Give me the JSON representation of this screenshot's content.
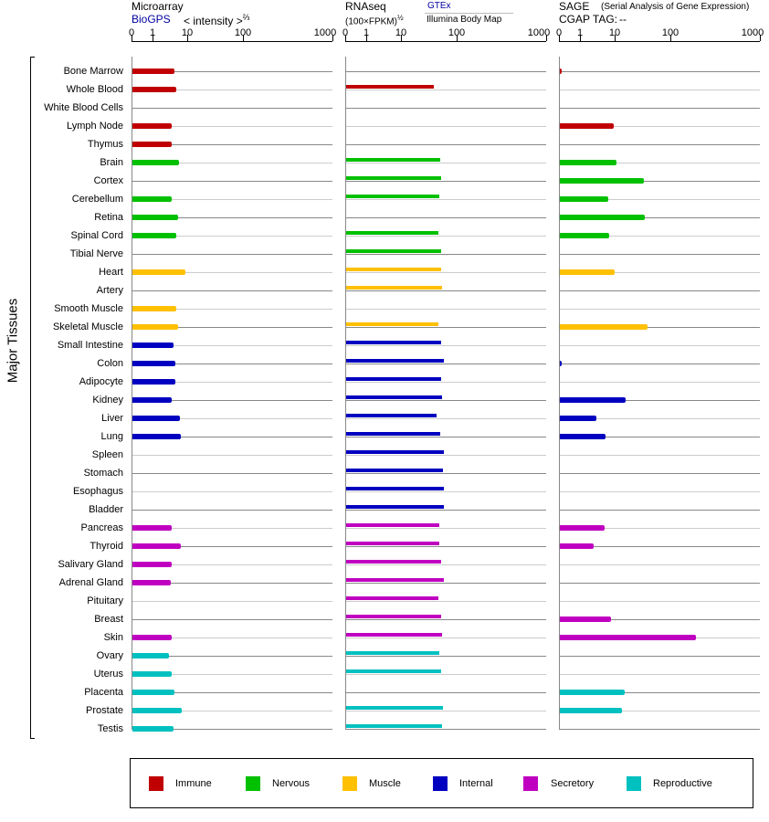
{
  "header": {
    "microarray": {
      "title": "Microarray",
      "source": "BioGPS",
      "unit": "< intensity >",
      "unit_exp": "⅔"
    },
    "rnaseq": {
      "title": "RNAseq",
      "unit": "(100×FPKM)",
      "unit_exp": "½",
      "source_primary": "GTEx",
      "source_secondary": "Illumina Body Map"
    },
    "sage": {
      "title": "SAGE",
      "subtitle": "(Serial Analysis of Gene Expression)",
      "tag_label": "CGAP TAG:",
      "tag_value": "--"
    }
  },
  "axis_ticks": [
    "0",
    "1",
    "10",
    "100",
    "1000"
  ],
  "y_label": "Major Tissues",
  "groups": {
    "immune": {
      "label": "Immune",
      "color": "#c00000"
    },
    "nervous": {
      "label": "Nervous",
      "color": "#00c000"
    },
    "muscle": {
      "label": "Muscle",
      "color": "#ffc000"
    },
    "internal": {
      "label": "Internal",
      "color": "#0000c0"
    },
    "secretory": {
      "label": "Secretory",
      "color": "#c000c0"
    },
    "reproductive": {
      "label": "Reproductive",
      "color": "#00c0c0"
    }
  },
  "legend_order": [
    "immune",
    "nervous",
    "muscle",
    "internal",
    "secretory",
    "reproductive"
  ],
  "chart_data": {
    "type": "bar",
    "orientation": "horizontal",
    "scale_ticks": [
      0,
      1,
      10,
      100,
      1000
    ],
    "series_names": [
      "Microarray",
      "RNAseq",
      "SAGE"
    ],
    "tissues": [
      {
        "name": "Bone Marrow",
        "group": "immune",
        "microarray": 4.0,
        "rnaseq": null,
        "sage": 0.1
      },
      {
        "name": "Whole Blood",
        "group": "immune",
        "microarray": 4.5,
        "rnaseq": 37,
        "sage": null
      },
      {
        "name": "White Blood Cells",
        "group": "immune",
        "microarray": null,
        "rnaseq": null,
        "sage": null
      },
      {
        "name": "Lymph Node",
        "group": "immune",
        "microarray": 3.4,
        "rnaseq": null,
        "sage": 8.9
      },
      {
        "name": "Thymus",
        "group": "immune",
        "microarray": 3.4,
        "rnaseq": null,
        "sage": null
      },
      {
        "name": "Brain",
        "group": "nervous",
        "microarray": 5.5,
        "rnaseq": 49,
        "sage": 10.4
      },
      {
        "name": "Cortex",
        "group": "nervous",
        "microarray": null,
        "rnaseq": 51,
        "sage": 32
      },
      {
        "name": "Cerebellum",
        "group": "nervous",
        "microarray": 3.4,
        "rnaseq": 47,
        "sage": 6.2
      },
      {
        "name": "Retina",
        "group": "nervous",
        "microarray": 5.1,
        "rnaseq": null,
        "sage": 33.5
      },
      {
        "name": "Spinal Cord",
        "group": "nervous",
        "microarray": 4.5,
        "rnaseq": 45,
        "sage": 6.5
      },
      {
        "name": "Tibial Nerve",
        "group": "nervous",
        "microarray": null,
        "rnaseq": 51,
        "sage": null
      },
      {
        "name": "Heart",
        "group": "muscle",
        "microarray": 8.3,
        "rnaseq": 51,
        "sage": 9.4
      },
      {
        "name": "Artery",
        "group": "muscle",
        "microarray": null,
        "rnaseq": 53,
        "sage": null
      },
      {
        "name": "Smooth Muscle",
        "group": "muscle",
        "microarray": 4.5,
        "rnaseq": null,
        "sage": null
      },
      {
        "name": "Skeletal Muscle",
        "group": "muscle",
        "microarray": 5.1,
        "rnaseq": 45,
        "sage": 37.5
      },
      {
        "name": "Small Intestine",
        "group": "internal",
        "microarray": 3.8,
        "rnaseq": 51,
        "sage": null
      },
      {
        "name": "Colon",
        "group": "internal",
        "microarray": 4.3,
        "rnaseq": 57,
        "sage": 0.1
      },
      {
        "name": "Adipocyte",
        "group": "internal",
        "microarray": 4.3,
        "rnaseq": 51,
        "sage": null
      },
      {
        "name": "Kidney",
        "group": "internal",
        "microarray": 3.4,
        "rnaseq": 53,
        "sage": 15
      },
      {
        "name": "Liver",
        "group": "internal",
        "microarray": 5.8,
        "rnaseq": 42,
        "sage": 2.8
      },
      {
        "name": "Lung",
        "group": "internal",
        "microarray": 6.2,
        "rnaseq": 49,
        "sage": 5.1
      },
      {
        "name": "Spleen",
        "group": "internal",
        "microarray": null,
        "rnaseq": 57,
        "sage": null
      },
      {
        "name": "Stomach",
        "group": "internal",
        "microarray": null,
        "rnaseq": 55,
        "sage": null
      },
      {
        "name": "Esophagus",
        "group": "internal",
        "microarray": null,
        "rnaseq": 57,
        "sage": null
      },
      {
        "name": "Bladder",
        "group": "internal",
        "microarray": null,
        "rnaseq": 57,
        "sage": null
      },
      {
        "name": "Pancreas",
        "group": "secretory",
        "microarray": 3.4,
        "rnaseq": 47,
        "sage": 4.8
      },
      {
        "name": "Thyroid",
        "group": "secretory",
        "microarray": 6.2,
        "rnaseq": 47,
        "sage": 2.3
      },
      {
        "name": "Salivary Gland",
        "group": "secretory",
        "microarray": 3.4,
        "rnaseq": 51,
        "sage": null
      },
      {
        "name": "Adrenal Gland",
        "group": "secretory",
        "microarray": 3.2,
        "rnaseq": 57,
        "sage": null
      },
      {
        "name": "Pituitary",
        "group": "secretory",
        "microarray": null,
        "rnaseq": 45,
        "sage": null
      },
      {
        "name": "Breast",
        "group": "secretory",
        "microarray": null,
        "rnaseq": 51,
        "sage": 7.4
      },
      {
        "name": "Skin",
        "group": "secretory",
        "microarray": 3.4,
        "rnaseq": 53,
        "sage": 189
      },
      {
        "name": "Ovary",
        "group": "reproductive",
        "microarray": 2.8,
        "rnaseq": 47,
        "sage": null
      },
      {
        "name": "Uterus",
        "group": "reproductive",
        "microarray": 3.4,
        "rnaseq": 51,
        "sage": null
      },
      {
        "name": "Placenta",
        "group": "reproductive",
        "microarray": 4.0,
        "rnaseq": null,
        "sage": 14.6
      },
      {
        "name": "Prostate",
        "group": "reproductive",
        "microarray": 6.5,
        "rnaseq": 55,
        "sage": 13
      },
      {
        "name": "Testis",
        "group": "reproductive",
        "microarray": 3.8,
        "rnaseq": 53,
        "sage": null
      }
    ]
  }
}
